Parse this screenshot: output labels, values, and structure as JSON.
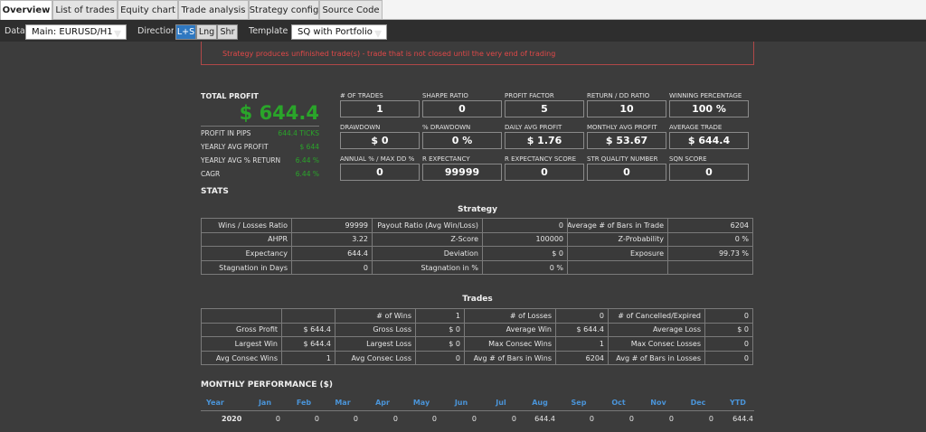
{
  "tabs": [
    "Overview",
    "List of trades",
    "Equity chart",
    "Trade analysis",
    "Strategy config",
    "Source Code"
  ],
  "toolbar": {
    "data_label": "Data",
    "data_value": "Main: EURUSD/H1",
    "direction_label": "Direction",
    "direction_options": [
      "L+S",
      "Lng",
      "Shr"
    ],
    "template_label": "Template",
    "template_value": "SQ with Portfolio"
  },
  "warning": "Strategy produces unfinished trade(s) - trade that is not closed until the very end of trading",
  "total_profit": {
    "label": "TOTAL PROFIT",
    "value": "$ 644.4"
  },
  "summary": [
    [
      "PROFIT IN PIPS",
      "644.4 TICKS"
    ],
    [
      "YEARLY AVG PROFIT",
      "$ 644"
    ],
    [
      "YEARLY AVG % RETURN",
      "6.44 %"
    ],
    [
      "CAGR",
      "6.44 %"
    ]
  ],
  "metrics": [
    [
      "# OF TRADES",
      "1"
    ],
    [
      "SHARPE RATIO",
      "0"
    ],
    [
      "PROFIT FACTOR",
      "5"
    ],
    [
      "RETURN / DD RATIO",
      "10"
    ],
    [
      "WINNING PERCENTAGE",
      "100 %"
    ],
    [
      "DRAWDOWN",
      "$ 0"
    ],
    [
      "% DRAWDOWN",
      "0 %"
    ],
    [
      "DAILY AVG PROFIT",
      "$ 1.76"
    ],
    [
      "MONTHLY AVG PROFIT",
      "$ 53.67"
    ],
    [
      "AVERAGE TRADE",
      "$ 644.4"
    ],
    [
      "ANNUAL % / MAX DD %",
      "0"
    ],
    [
      "R EXPECTANCY",
      "99999"
    ],
    [
      "R EXPECTANCY SCORE",
      "0"
    ],
    [
      "STR QUALITY NUMBER",
      "0"
    ],
    [
      "SQN SCORE",
      "0"
    ]
  ],
  "stats_title": "STATS",
  "strategy": {
    "title": "Strategy",
    "rows": [
      [
        "Wins / Losses Ratio",
        "99999",
        "Payout Ratio (Avg Win/Loss)",
        "0",
        "Average # of Bars in Trade",
        "6204"
      ],
      [
        "AHPR",
        "3.22",
        "Z-Score",
        "100000",
        "Z-Probability",
        "0 %"
      ],
      [
        "Expectancy",
        "644.4",
        "Deviation",
        "$ 0",
        "Exposure",
        "99.73 %"
      ],
      [
        "Stagnation in Days",
        "0",
        "Stagnation in %",
        "0 %",
        null,
        null
      ]
    ]
  },
  "trades": {
    "title": "Trades",
    "rows": [
      [
        null,
        null,
        "# of Wins",
        "1",
        "# of Losses",
        "0",
        "# of Cancelled/Expired",
        "0"
      ],
      [
        "Gross Profit",
        "$ 644.4",
        "Gross Loss",
        "$ 0",
        "Average Win",
        "$ 644.4",
        "Average Loss",
        "$ 0"
      ],
      [
        "Largest Win",
        "$ 644.4",
        "Largest Loss",
        "$ 0",
        "Max Consec Wins",
        "1",
        "Max Consec Losses",
        "0"
      ],
      [
        "Avg Consec Wins",
        "1",
        "Avg Consec Loss",
        "0",
        "Avg # of Bars in Wins",
        "6204",
        "Avg # of Bars in Losses",
        "0"
      ]
    ]
  },
  "monthly": {
    "title": "MONTHLY PERFORMANCE ($)",
    "header": [
      "Year",
      "Jan",
      "Feb",
      "Mar",
      "Apr",
      "May",
      "Jun",
      "Jul",
      "Aug",
      "Sep",
      "Oct",
      "Nov",
      "Dec",
      "YTD"
    ],
    "rows": [
      [
        "2020",
        "0",
        "0",
        "0",
        "0",
        "0",
        "0",
        "0",
        "644.4",
        "0",
        "0",
        "0",
        "0",
        "644.4"
      ]
    ]
  }
}
